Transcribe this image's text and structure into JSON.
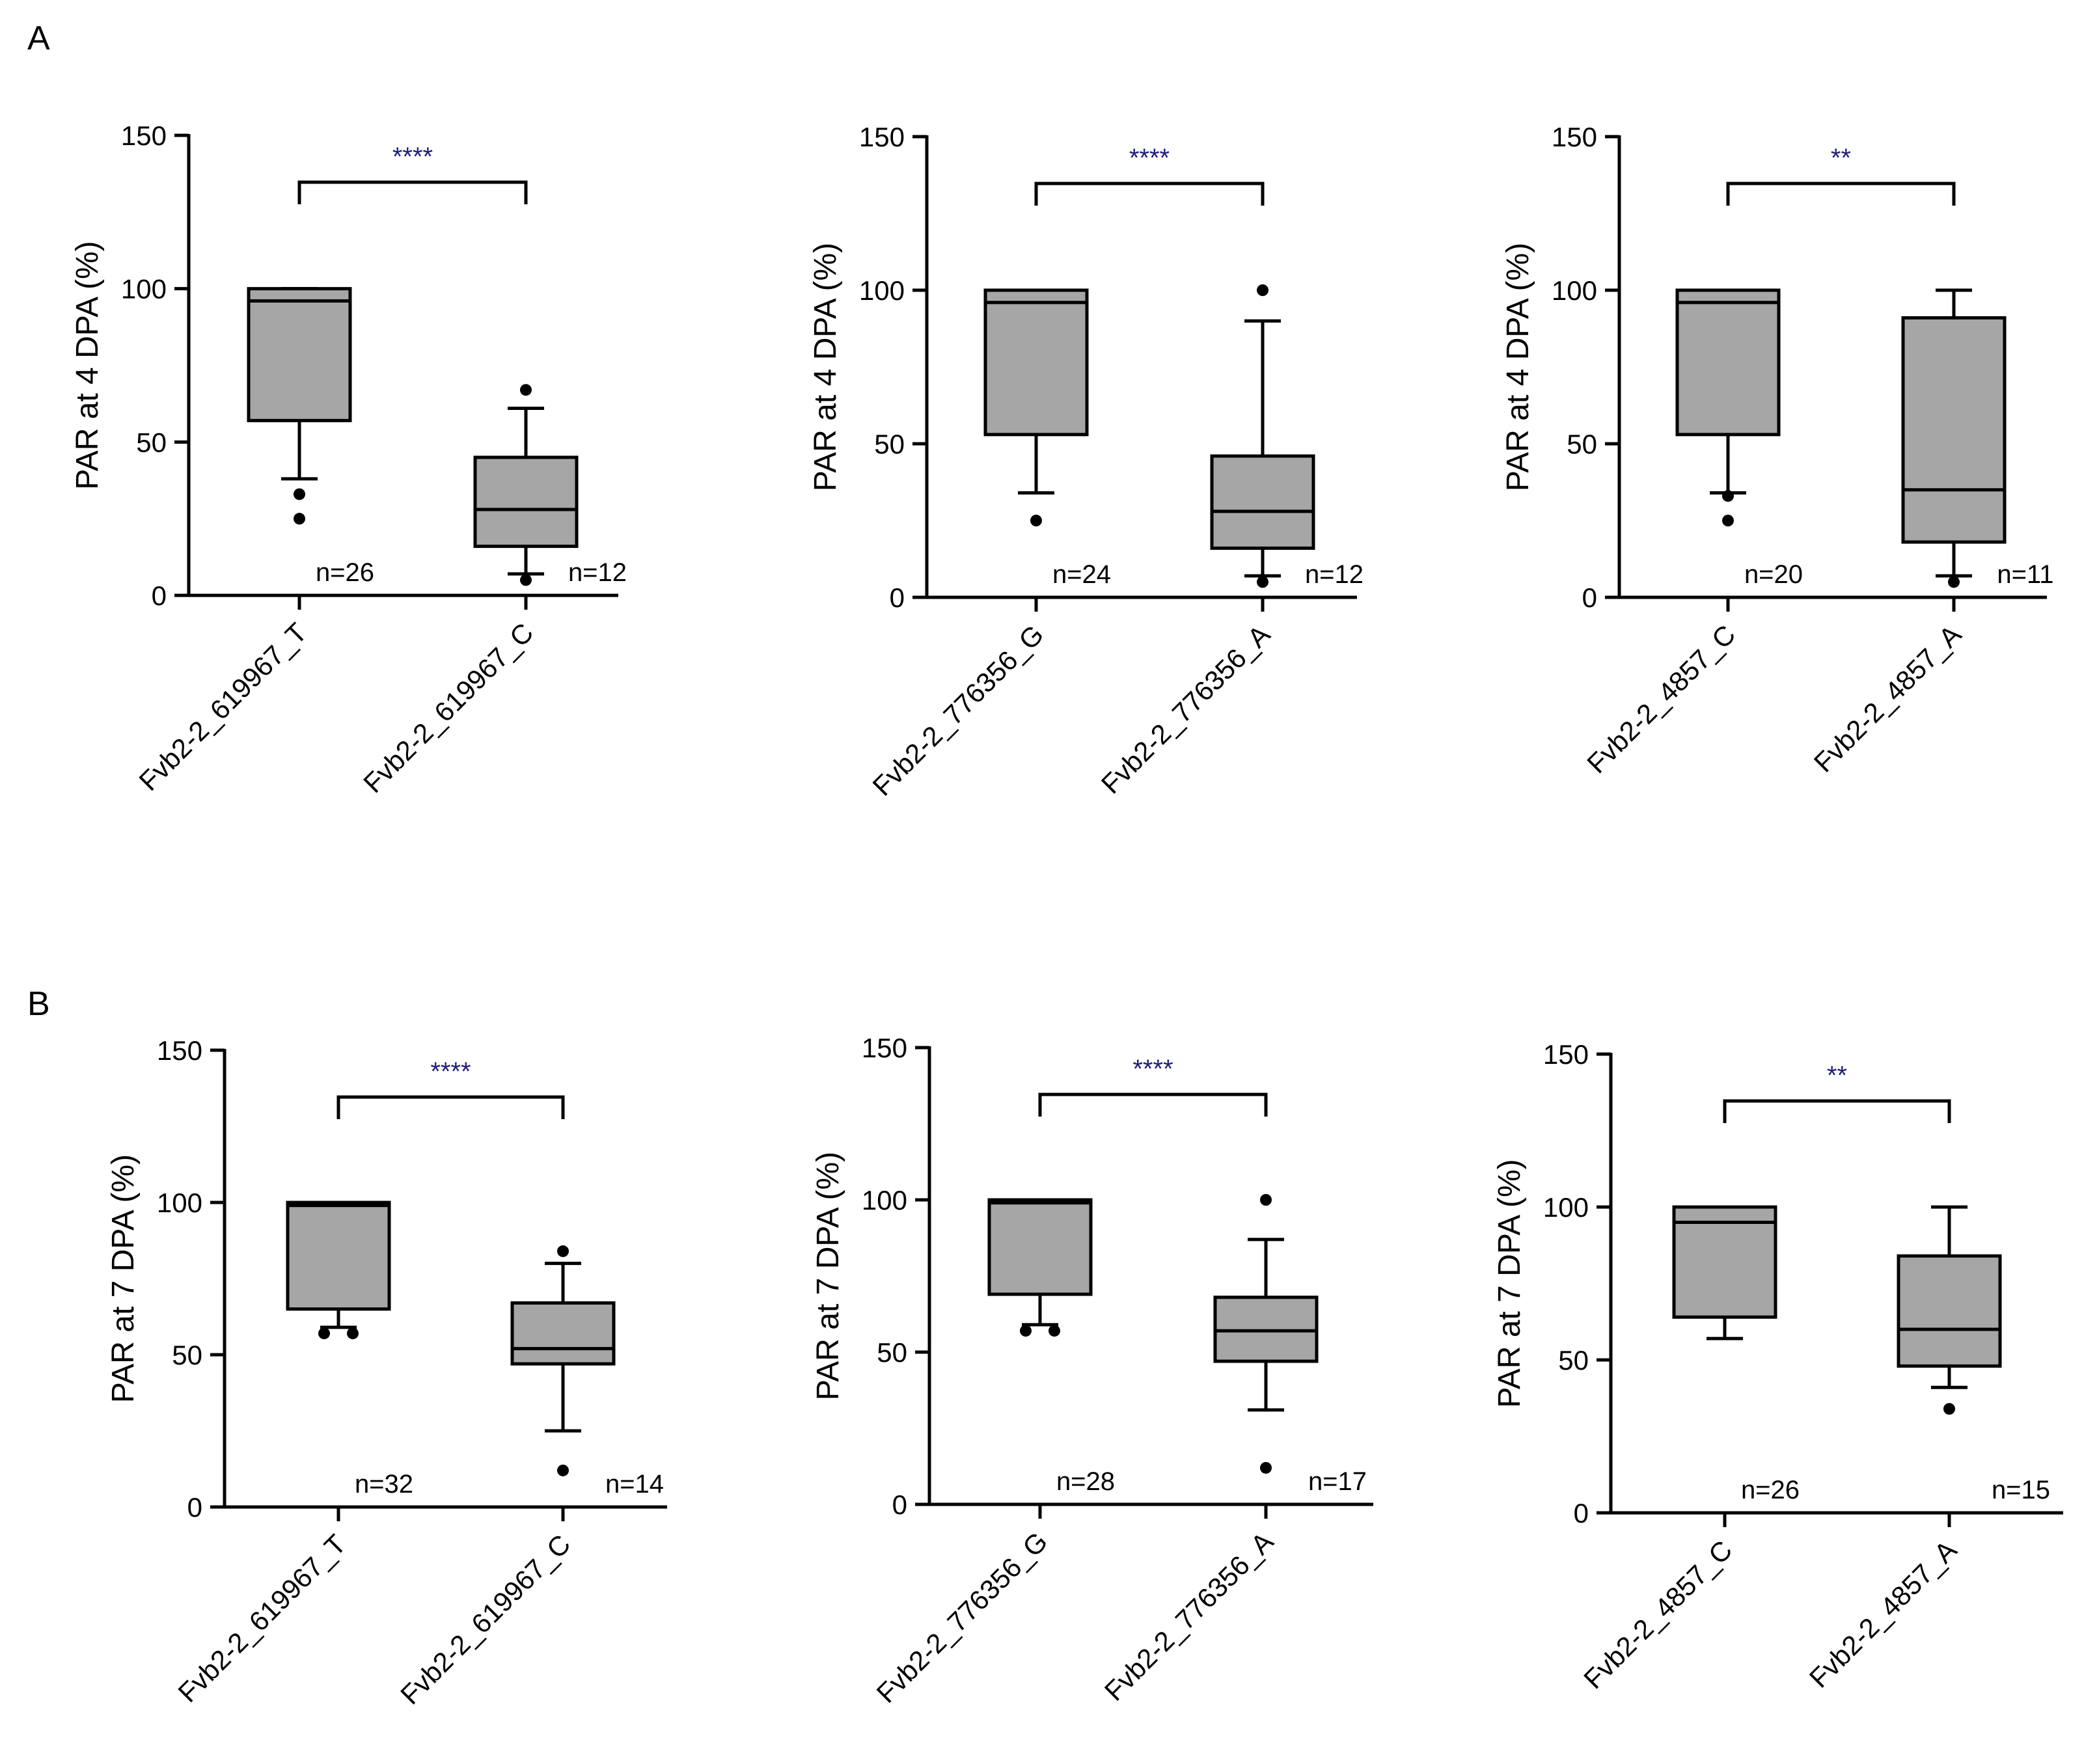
{
  "figure": {
    "panel_labels": [
      "A",
      "B"
    ],
    "colors": {
      "box_fill": "#a6a6a6",
      "stroke": "#000000",
      "significance_text": "#1f1f7a"
    }
  },
  "chart_data": [
    {
      "type": "box",
      "panel": "A",
      "ylabel": "PAR at 4 DPA (%)",
      "ylim": [
        0,
        150
      ],
      "yticks": [
        0,
        50,
        100,
        150
      ],
      "categories": [
        "Fvb2-2_619967_T",
        "Fvb2-2_619967_C"
      ],
      "significance": "****",
      "groups": [
        {
          "name": "Fvb2-2_619967_T",
          "n_label": "n=26",
          "min": 38,
          "q1": 57,
          "median": 96,
          "q3": 100,
          "max": 100,
          "outliers": [
            33,
            25
          ]
        },
        {
          "name": "Fvb2-2_619967_C",
          "n_label": "n=12",
          "min": 7,
          "q1": 16,
          "median": 28,
          "q3": 45,
          "max": 61,
          "outliers": [
            67,
            5
          ]
        }
      ]
    },
    {
      "type": "box",
      "panel": "A",
      "ylabel": "PAR at 4 DPA (%)",
      "ylim": [
        0,
        150
      ],
      "yticks": [
        0,
        50,
        100,
        150
      ],
      "categories": [
        "Fvb2-2_776356_G",
        "Fvb2-2_776356_A"
      ],
      "significance": "****",
      "groups": [
        {
          "name": "Fvb2-2_776356_G",
          "n_label": "n=24",
          "min": 34,
          "q1": 53,
          "median": 96,
          "q3": 100,
          "max": 100,
          "outliers": [
            25
          ]
        },
        {
          "name": "Fvb2-2_776356_A",
          "n_label": "n=12",
          "min": 7,
          "q1": 16,
          "median": 28,
          "q3": 46,
          "max": 90,
          "outliers": [
            100,
            5
          ]
        }
      ]
    },
    {
      "type": "box",
      "panel": "A",
      "ylabel": "PAR at 4 DPA (%)",
      "ylim": [
        0,
        150
      ],
      "yticks": [
        0,
        50,
        100,
        150
      ],
      "categories": [
        "Fvb2-2_4857_C",
        "Fvb2-2_4857_A"
      ],
      "significance": "**",
      "groups": [
        {
          "name": "Fvb2-2_4857_C",
          "n_label": "n=20",
          "min": 34,
          "q1": 53,
          "median": 96,
          "q3": 100,
          "max": 100,
          "outliers": [
            33,
            25
          ]
        },
        {
          "name": "Fvb2-2_4857_A",
          "n_label": "n=11",
          "min": 7,
          "q1": 18,
          "median": 35,
          "q3": 91,
          "max": 100,
          "outliers": [
            5
          ]
        }
      ]
    },
    {
      "type": "box",
      "panel": "B",
      "ylabel": "PAR at 7 DPA (%)",
      "ylim": [
        0,
        150
      ],
      "yticks": [
        0,
        50,
        100,
        150
      ],
      "categories": [
        "Fvb2-2_619967_T",
        "Fvb2-2_619967_C"
      ],
      "significance": "****",
      "groups": [
        {
          "name": "Fvb2-2_619967_T",
          "n_label": "n=32",
          "min": 59,
          "q1": 65,
          "median": 99,
          "q3": 100,
          "max": 100,
          "outliers": [
            57,
            57
          ]
        },
        {
          "name": "Fvb2-2_619967_C",
          "n_label": "n=14",
          "min": 25,
          "q1": 47,
          "median": 52,
          "q3": 67,
          "max": 80,
          "outliers": [
            84,
            12
          ]
        }
      ]
    },
    {
      "type": "box",
      "panel": "B",
      "ylabel": "PAR at 7 DPA (%)",
      "ylim": [
        0,
        150
      ],
      "yticks": [
        0,
        50,
        100,
        150
      ],
      "categories": [
        "Fvb2-2_776356_G",
        "Fvb2-2_776356_A"
      ],
      "significance": "****",
      "groups": [
        {
          "name": "Fvb2-2_776356_G",
          "n_label": "n=28",
          "min": 59,
          "q1": 69,
          "median": 99,
          "q3": 100,
          "max": 100,
          "outliers": [
            57,
            57
          ]
        },
        {
          "name": "Fvb2-2_776356_A",
          "n_label": "n=17",
          "min": 31,
          "q1": 47,
          "median": 57,
          "q3": 68,
          "max": 87,
          "outliers": [
            100,
            12
          ]
        }
      ]
    },
    {
      "type": "box",
      "panel": "B",
      "ylabel": "PAR at 7 DPA (%)",
      "ylim": [
        0,
        150
      ],
      "yticks": [
        0,
        50,
        100,
        150
      ],
      "categories": [
        "Fvb2-2_4857_C",
        "Fvb2-2_4857_A"
      ],
      "significance": "**",
      "groups": [
        {
          "name": "Fvb2-2_4857_C",
          "n_label": "n=26",
          "min": 57,
          "q1": 64,
          "median": 95,
          "q3": 100,
          "max": 100,
          "outliers": []
        },
        {
          "name": "Fvb2-2_4857_A",
          "n_label": "n=15",
          "min": 41,
          "q1": 48,
          "median": 60,
          "q3": 84,
          "max": 100,
          "outliers": [
            34
          ]
        }
      ]
    }
  ]
}
